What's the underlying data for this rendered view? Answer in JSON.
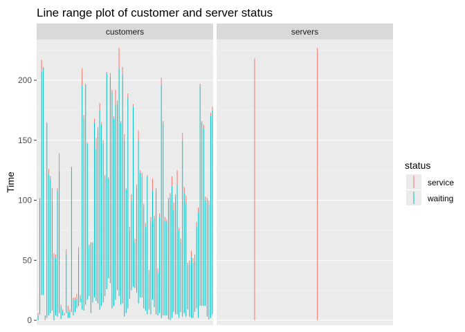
{
  "chart_data": {
    "type": "linerange",
    "title": "Line range plot of customer and server status",
    "ylabel": "Time",
    "xlabel": "",
    "ylim": [
      -4,
      234
    ],
    "y_ticks": [
      0,
      50,
      100,
      150,
      200
    ],
    "y_tick_labels": [
      "0",
      "50",
      "100",
      "150",
      "200"
    ],
    "grid": true,
    "legend": {
      "title": "status",
      "placement": "right",
      "entries": [
        {
          "label": "service",
          "color": "#F8766D"
        },
        {
          "label": "waiting",
          "color": "#00BFC4"
        }
      ]
    },
    "facets": [
      {
        "label": "customers",
        "x_count": 100,
        "series": [
          {
            "name": "waiting",
            "color": "#00BFC4",
            "ranges": [
              [
                1,
                0,
                4
              ],
              [
                2,
                5,
                101
              ],
              [
                3,
                21,
                207
              ],
              [
                4,
                21,
                210
              ],
              [
                5,
                2,
                4
              ],
              [
                6,
                2,
                164
              ],
              [
                7,
                4,
                122
              ],
              [
                8,
                6,
                118
              ],
              [
                9,
                8,
                99
              ],
              [
                10,
                0,
                53
              ],
              [
                11,
                4,
                52
              ],
              [
                12,
                3,
                108
              ],
              [
                13,
                6,
                124
              ],
              [
                14,
                1,
                11
              ],
              [
                15,
                4,
                8
              ],
              [
                16,
                4,
                5
              ],
              [
                17,
                6,
                55
              ],
              [
                18,
                2,
                8
              ],
              [
                19,
                2,
                7
              ],
              [
                20,
                7,
                127
              ],
              [
                21,
                4,
                17
              ],
              [
                22,
                7,
                17
              ],
              [
                23,
                10,
                18
              ],
              [
                24,
                12,
                55
              ],
              [
                25,
                15,
                19
              ],
              [
                26,
                9,
                196
              ],
              [
                27,
                8,
                168
              ],
              [
                28,
                13,
                196
              ],
              [
                29,
                17,
                147
              ],
              [
                30,
                20,
                62
              ],
              [
                31,
                6,
                64
              ],
              [
                32,
                15,
                64
              ],
              [
                33,
                19,
                165
              ],
              [
                34,
                16,
                143
              ],
              [
                35,
                14,
                158
              ],
              [
                36,
                9,
                175
              ],
              [
                37,
                12,
                163
              ],
              [
                38,
                15,
                147
              ],
              [
                39,
                20,
                120
              ],
              [
                40,
                26,
                206
              ],
              [
                41,
                35,
                118
              ],
              [
                42,
                31,
                203
              ],
              [
                43,
                10,
                190
              ],
              [
                44,
                12,
                168
              ],
              [
                45,
                17,
                180
              ],
              [
                46,
                25,
                180
              ],
              [
                47,
                20,
                210
              ],
              [
                48,
                13,
                165
              ],
              [
                49,
                14,
                205
              ],
              [
                50,
                3,
                150
              ],
              [
                51,
                6,
                109
              ],
              [
                52,
                10,
                185
              ],
              [
                53,
                18,
                75
              ],
              [
                54,
                25,
                100
              ],
              [
                55,
                28,
                178
              ],
              [
                56,
                27,
                65
              ],
              [
                57,
                23,
                110
              ],
              [
                58,
                14,
                150
              ],
              [
                59,
                19,
                123
              ],
              [
                60,
                19,
                120
              ],
              [
                61,
                10,
                95
              ],
              [
                62,
                8,
                78
              ],
              [
                63,
                5,
                120
              ],
              [
                64,
                9,
                40
              ],
              [
                65,
                5,
                82
              ],
              [
                66,
                17,
                108
              ],
              [
                67,
                11,
                85
              ],
              [
                68,
                5,
                108
              ],
              [
                69,
                4,
                40
              ],
              [
                70,
                6,
                86
              ],
              [
                71,
                2,
                196
              ],
              [
                72,
                4,
                164
              ],
              [
                73,
                4,
                83
              ],
              [
                74,
                4,
                82
              ],
              [
                75,
                1,
                100
              ],
              [
                76,
                0,
                103
              ],
              [
                77,
                2,
                112
              ],
              [
                78,
                7,
                92
              ],
              [
                79,
                5,
                103
              ],
              [
                80,
                5,
                113
              ],
              [
                81,
                2,
                75
              ],
              [
                82,
                7,
                65
              ],
              [
                83,
                3,
                150
              ],
              [
                84,
                6,
                106
              ],
              [
                85,
                3,
                98
              ],
              [
                86,
                9,
                46
              ],
              [
                87,
                3,
                47
              ],
              [
                88,
                2,
                53
              ],
              [
                89,
                2,
                48
              ],
              [
                90,
                7,
                50
              ],
              [
                91,
                10,
                78
              ],
              [
                92,
                2,
                90
              ],
              [
                93,
                12,
                195
              ],
              [
                94,
                12,
                165
              ],
              [
                95,
                12,
                160
              ],
              [
                96,
                12,
                100
              ],
              [
                97,
                3,
                100
              ],
              [
                98,
                1,
                96
              ],
              [
                99,
                2,
                170
              ],
              [
                100,
                5,
                175
              ]
            ]
          },
          {
            "name": "service",
            "color": "#F8766D",
            "ranges": [
              [
                1,
                4,
                6
              ],
              [
                2,
                101,
                102
              ],
              [
                3,
                207,
                217
              ],
              [
                4,
                210,
                211
              ],
              [
                5,
                0,
                2
              ],
              [
                6,
                164,
                165
              ],
              [
                7,
                122,
                126
              ],
              [
                8,
                118,
                120
              ],
              [
                9,
                99,
                110
              ],
              [
                10,
                53,
                56
              ],
              [
                11,
                52,
                55
              ],
              [
                12,
                108,
                110
              ],
              [
                13,
                124,
                139
              ],
              [
                14,
                11,
                13
              ],
              [
                15,
                8,
                9
              ],
              [
                16,
                5,
                6
              ],
              [
                17,
                55,
                59
              ],
              [
                18,
                8,
                12
              ],
              [
                19,
                7,
                9
              ],
              [
                20,
                127,
                128
              ],
              [
                21,
                17,
                19
              ],
              [
                22,
                17,
                19
              ],
              [
                23,
                18,
                22
              ],
              [
                24,
                55,
                61
              ],
              [
                25,
                19,
                21
              ],
              [
                26,
                196,
                210
              ],
              [
                27,
                168,
                171
              ],
              [
                28,
                196,
                197
              ],
              [
                29,
                147,
                148
              ],
              [
                30,
                62,
                63
              ],
              [
                31,
                64,
                65
              ],
              [
                32,
                64,
                65
              ],
              [
                33,
                165,
                168
              ],
              [
                34,
                143,
                152
              ],
              [
                35,
                158,
                161
              ],
              [
                36,
                175,
                181
              ],
              [
                37,
                163,
                165
              ],
              [
                38,
                147,
                150
              ],
              [
                39,
                120,
                121
              ],
              [
                40,
                206,
                207
              ],
              [
                41,
                118,
                119
              ],
              [
                42,
                203,
                206
              ],
              [
                43,
                190,
                192
              ],
              [
                44,
                168,
                170
              ],
              [
                45,
                180,
                192
              ],
              [
                46,
                180,
                183
              ],
              [
                47,
                210,
                227
              ],
              [
                48,
                165,
                166
              ],
              [
                49,
                205,
                211
              ],
              [
                50,
                150,
                155
              ],
              [
                51,
                109,
                110
              ],
              [
                52,
                185,
                189
              ],
              [
                53,
                75,
                78
              ],
              [
                54,
                100,
                105
              ],
              [
                55,
                178,
                180
              ],
              [
                56,
                65,
                68
              ],
              [
                57,
                110,
                113
              ],
              [
                58,
                150,
                158
              ],
              [
                59,
                123,
                125
              ],
              [
                60,
                120,
                123
              ],
              [
                61,
                95,
                97
              ],
              [
                62,
                78,
                81
              ],
              [
                63,
                120,
                121
              ],
              [
                64,
                40,
                42
              ],
              [
                65,
                82,
                86
              ],
              [
                66,
                108,
                118
              ],
              [
                67,
                85,
                87
              ],
              [
                68,
                108,
                110
              ],
              [
                69,
                40,
                43
              ],
              [
                70,
                86,
                89
              ],
              [
                71,
                196,
                202
              ],
              [
                72,
                164,
                166
              ],
              [
                73,
                83,
                86
              ],
              [
                74,
                82,
                84
              ],
              [
                75,
                100,
                102
              ],
              [
                76,
                103,
                106
              ],
              [
                77,
                112,
                120
              ],
              [
                78,
                92,
                98
              ],
              [
                79,
                103,
                105
              ],
              [
                80,
                113,
                125
              ],
              [
                81,
                75,
                77
              ],
              [
                82,
                65,
                68
              ],
              [
                83,
                150,
                156
              ],
              [
                84,
                106,
                111
              ],
              [
                85,
                98,
                104
              ],
              [
                86,
                46,
                48
              ],
              [
                87,
                47,
                50
              ],
              [
                88,
                53,
                58
              ],
              [
                89,
                48,
                52
              ],
              [
                90,
                50,
                55
              ],
              [
                91,
                78,
                82
              ],
              [
                92,
                90,
                94
              ],
              [
                93,
                195,
                197
              ],
              [
                94,
                165,
                166
              ],
              [
                95,
                160,
                163
              ],
              [
                96,
                100,
                103
              ],
              [
                97,
                100,
                102
              ],
              [
                98,
                96,
                100
              ],
              [
                99,
                170,
                173
              ],
              [
                100,
                175,
                178
              ]
            ]
          }
        ]
      },
      {
        "label": "servers",
        "x_count": 3,
        "series": [
          {
            "name": "service",
            "color": "#F8766D",
            "ranges": [
              [
                1,
                0,
                218
              ],
              [
                2,
                0,
                227
              ]
            ]
          }
        ]
      }
    ]
  }
}
